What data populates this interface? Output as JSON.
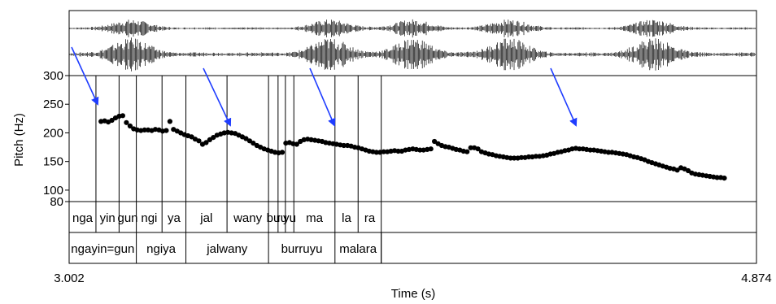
{
  "chart_data": {
    "type": "scatter",
    "ylabel": "Pitch (Hz)",
    "xlabel": "Time (s)",
    "xlim": [
      3.002,
      4.874
    ],
    "ylim": [
      80,
      300
    ],
    "xtick_labels": [
      "3.002",
      "4.874"
    ],
    "yticks": [
      300,
      250,
      200,
      150,
      100,
      80
    ],
    "ytick_labels": [
      "300",
      "250",
      "200",
      "150",
      "100",
      "80"
    ],
    "arrow_color": "#1f3dff",
    "pitch_segments": [
      {
        "x": [
          3.09,
          3.1,
          3.11,
          3.12,
          3.13,
          3.14,
          3.15,
          3.16,
          3.17,
          3.18,
          3.19,
          3.2,
          3.21,
          3.22,
          3.23,
          3.24,
          3.25,
          3.26,
          3.27
        ],
        "y": [
          220,
          221,
          219,
          222,
          226,
          229,
          230,
          218,
          212,
          207,
          205,
          204,
          205,
          205,
          204,
          206,
          205,
          203,
          204
        ]
      },
      {
        "x": [
          3.28,
          3.29,
          3.3,
          3.31,
          3.32,
          3.33,
          3.34,
          3.35,
          3.36,
          3.37,
          3.38,
          3.39,
          3.4,
          3.41,
          3.42,
          3.43,
          3.44,
          3.45,
          3.46,
          3.47,
          3.48,
          3.49,
          3.5,
          3.51,
          3.52,
          3.53,
          3.54,
          3.55,
          3.56,
          3.57,
          3.58,
          3.59
        ],
        "y": [
          220,
          206,
          203,
          200,
          197,
          195,
          193,
          189,
          186,
          180,
          183,
          188,
          192,
          196,
          198,
          200,
          201,
          200,
          199,
          196,
          193,
          190,
          186,
          182,
          178,
          175,
          172,
          170,
          168,
          166,
          165,
          166
        ]
      },
      {
        "x": [
          3.6,
          3.61,
          3.62,
          3.63,
          3.64,
          3.65,
          3.66,
          3.67,
          3.68,
          3.69,
          3.7,
          3.71,
          3.72,
          3.73,
          3.74,
          3.75,
          3.76,
          3.77,
          3.78,
          3.79,
          3.8,
          3.81,
          3.82,
          3.83,
          3.84,
          3.85,
          3.86,
          3.87,
          3.88,
          3.89,
          3.9,
          3.91,
          3.92,
          3.93,
          3.94,
          3.95,
          3.96,
          3.97,
          3.98,
          3.99,
          4.0
        ],
        "y": [
          182,
          183,
          181,
          180,
          185,
          188,
          189,
          188,
          187,
          186,
          185,
          183,
          182,
          181,
          180,
          179,
          178,
          178,
          177,
          175,
          174,
          172,
          170,
          168,
          167,
          166,
          166,
          167,
          167,
          168,
          169,
          168,
          168,
          170,
          171,
          172,
          171,
          170,
          170,
          171,
          172
        ]
      },
      {
        "x": [
          4.01,
          4.02,
          4.03,
          4.04,
          4.05,
          4.06,
          4.07,
          4.08,
          4.09,
          4.1,
          4.11,
          4.12,
          4.13,
          4.14,
          4.15,
          4.16,
          4.17,
          4.18,
          4.19,
          4.2,
          4.21,
          4.22,
          4.23,
          4.24,
          4.25,
          4.26,
          4.27,
          4.28,
          4.29,
          4.3,
          4.31,
          4.32,
          4.33,
          4.34,
          4.35,
          4.36,
          4.37,
          4.38,
          4.39,
          4.4,
          4.41,
          4.42,
          4.43,
          4.44,
          4.45,
          4.46,
          4.47,
          4.48,
          4.49,
          4.5,
          4.51,
          4.52,
          4.53,
          4.54,
          4.55,
          4.56,
          4.57,
          4.58,
          4.59,
          4.6,
          4.61,
          4.62,
          4.63,
          4.64,
          4.65,
          4.66,
          4.67,
          4.68,
          4.69,
          4.7,
          4.71,
          4.72,
          4.73,
          4.74,
          4.75,
          4.76,
          4.77,
          4.78,
          4.79,
          4.8,
          4.81
        ],
        "y": [
          185,
          181,
          178,
          176,
          175,
          173,
          171,
          170,
          168,
          167,
          174,
          174,
          172,
          167,
          165,
          163,
          162,
          160,
          159,
          158,
          157,
          156,
          156,
          156,
          157,
          157,
          158,
          158,
          159,
          159,
          160,
          161,
          163,
          164,
          166,
          167,
          169,
          170,
          172,
          173,
          172,
          172,
          171,
          170,
          170,
          169,
          168,
          167,
          166,
          166,
          165,
          164,
          163,
          162,
          160,
          158,
          157,
          155,
          153,
          150,
          148,
          146,
          144,
          142,
          140,
          138,
          137,
          135,
          139,
          137,
          134,
          130,
          128,
          127,
          126,
          125,
          124,
          123,
          122,
          122,
          121
        ]
      }
    ],
    "syllables": [
      {
        "label": "nga",
        "start": 3.002,
        "end": 3.075
      },
      {
        "label": "yin",
        "start": 3.075,
        "end": 3.138
      },
      {
        "label": "gun",
        "start": 3.138,
        "end": 3.185
      },
      {
        "label": "ngi",
        "start": 3.185,
        "end": 3.255
      },
      {
        "label": "ya",
        "start": 3.255,
        "end": 3.32
      },
      {
        "label": "jal",
        "start": 3.32,
        "end": 3.432
      },
      {
        "label": "wany",
        "start": 3.432,
        "end": 3.545
      },
      {
        "label": "bu",
        "start": 3.545,
        "end": 3.571
      },
      {
        "label": "ru",
        "start": 3.571,
        "end": 3.591
      },
      {
        "label": "yu",
        "start": 3.591,
        "end": 3.614
      },
      {
        "label": "ma",
        "start": 3.614,
        "end": 3.726
      },
      {
        "label": "la",
        "start": 3.726,
        "end": 3.789
      },
      {
        "label": "ra",
        "start": 3.789,
        "end": 3.852
      }
    ],
    "words": [
      {
        "label": "ngayin=gun",
        "start": 3.002,
        "end": 3.185
      },
      {
        "label": "ngiya",
        "start": 3.185,
        "end": 3.32
      },
      {
        "label": "jalwany",
        "start": 3.32,
        "end": 3.545
      },
      {
        "label": "burruyu",
        "start": 3.545,
        "end": 3.726
      },
      {
        "label": "malara",
        "start": 3.726,
        "end": 3.852
      }
    ]
  }
}
